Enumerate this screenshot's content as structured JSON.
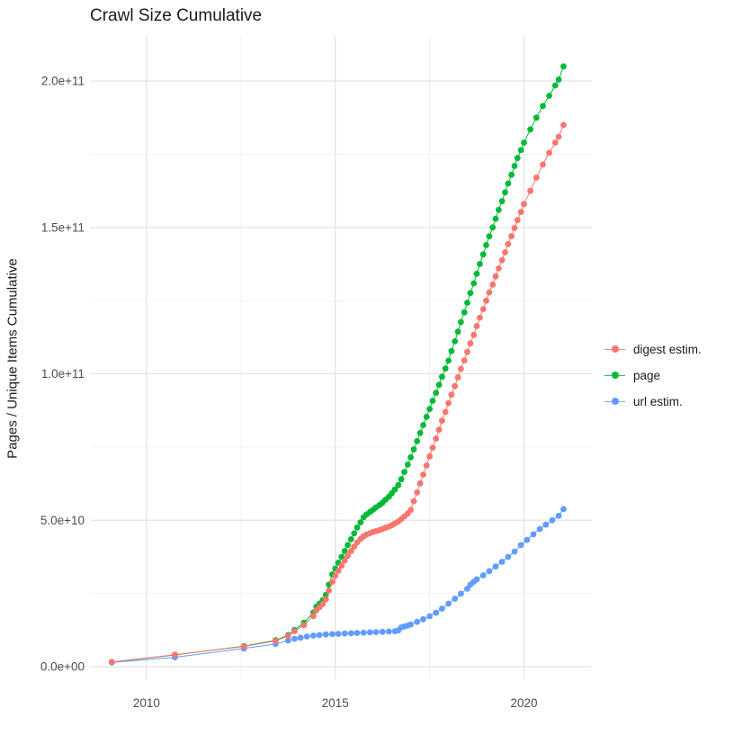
{
  "title": "Crawl Size Cumulative",
  "legend": {
    "items": [
      {
        "label": "digest estim.",
        "color": "#F8766D"
      },
      {
        "label": "page",
        "color": "#00BA38"
      },
      {
        "label": "url estim.",
        "color": "#619CFF"
      }
    ]
  },
  "chart_data": {
    "type": "line",
    "title": "Crawl Size Cumulative",
    "xlabel": "",
    "ylabel": "Pages / Unique Items Cumulative",
    "grid": {
      "on": true,
      "major_color": "#E3E3E3",
      "minor_color": "#F1F1F1",
      "background": "#FFFFFF"
    },
    "legend_position": "right",
    "axis_text_color": "#4D4D4D",
    "x_domain": [
      2008.5,
      2021.8
    ],
    "y_domain_e9": [
      -4.3,
      215.4
    ],
    "x_major_ticks": [
      {
        "value": 2010,
        "label": "2010"
      },
      {
        "value": 2015,
        "label": "2015"
      },
      {
        "value": 2020,
        "label": "2020"
      }
    ],
    "x_minor_ticks": [
      2012.5,
      2017.5
    ],
    "y_major_ticks_e9": [
      {
        "value": 0,
        "label": "0.0e+00"
      },
      {
        "value": 50,
        "label": "5.0e+10"
      },
      {
        "value": 100,
        "label": "1.0e+11"
      },
      {
        "value": 150,
        "label": "1.5e+11"
      },
      {
        "value": 200,
        "label": "2.0e+11"
      }
    ],
    "y_minor_ticks_e9": [
      25,
      75,
      125,
      175
    ],
    "values_unit": "items (value x 1e9)",
    "series": [
      {
        "name": "page",
        "color": "#00BA38",
        "points": [
          [
            2009.08,
            1.5
          ],
          [
            2010.75,
            4
          ],
          [
            2012.58,
            7
          ],
          [
            2013.42,
            9
          ],
          [
            2013.75,
            10.8
          ],
          [
            2013.92,
            12.5
          ],
          [
            2014.17,
            15
          ],
          [
            2014.42,
            18.5
          ],
          [
            2014.5,
            20.5
          ],
          [
            2014.58,
            21.5
          ],
          [
            2014.67,
            22.7
          ],
          [
            2014.75,
            24.5
          ],
          [
            2014.83,
            28
          ],
          [
            2014.92,
            31.5
          ],
          [
            2015.0,
            33.5
          ],
          [
            2015.08,
            35.5
          ],
          [
            2015.17,
            37.5
          ],
          [
            2015.25,
            39.5
          ],
          [
            2015.33,
            41.5
          ],
          [
            2015.42,
            43.5
          ],
          [
            2015.5,
            45.5
          ],
          [
            2015.58,
            47.5
          ],
          [
            2015.67,
            49.3
          ],
          [
            2015.75,
            51
          ],
          [
            2015.83,
            52
          ],
          [
            2015.92,
            52.8
          ],
          [
            2016.0,
            53.6
          ],
          [
            2016.08,
            54.4
          ],
          [
            2016.17,
            55.2
          ],
          [
            2016.25,
            56
          ],
          [
            2016.33,
            57
          ],
          [
            2016.42,
            58
          ],
          [
            2016.5,
            59.2
          ],
          [
            2016.58,
            60.5
          ],
          [
            2016.67,
            62
          ],
          [
            2016.75,
            64
          ],
          [
            2016.83,
            66.5
          ],
          [
            2016.92,
            69
          ],
          [
            2017.0,
            71.5
          ],
          [
            2017.08,
            74.2
          ],
          [
            2017.17,
            77
          ],
          [
            2017.25,
            79.8
          ],
          [
            2017.33,
            82.5
          ],
          [
            2017.42,
            85.3
          ],
          [
            2017.5,
            88
          ],
          [
            2017.58,
            90.8
          ],
          [
            2017.67,
            93.5
          ],
          [
            2017.75,
            96.3
          ],
          [
            2017.83,
            99
          ],
          [
            2017.92,
            101.8
          ],
          [
            2018.0,
            104.5
          ],
          [
            2018.08,
            107.8
          ],
          [
            2018.17,
            111.1
          ],
          [
            2018.25,
            114.4
          ],
          [
            2018.33,
            117.7
          ],
          [
            2018.42,
            121
          ],
          [
            2018.5,
            124.3
          ],
          [
            2018.58,
            127.6
          ],
          [
            2018.67,
            130.9
          ],
          [
            2018.75,
            134.2
          ],
          [
            2018.83,
            137.5
          ],
          [
            2018.92,
            140.8
          ],
          [
            2019.0,
            144
          ],
          [
            2019.08,
            147
          ],
          [
            2019.17,
            150
          ],
          [
            2019.25,
            153
          ],
          [
            2019.33,
            156
          ],
          [
            2019.42,
            159
          ],
          [
            2019.5,
            162
          ],
          [
            2019.58,
            165
          ],
          [
            2019.67,
            168
          ],
          [
            2019.75,
            171
          ],
          [
            2019.83,
            173.7
          ],
          [
            2019.92,
            176.4
          ],
          [
            2020.0,
            179
          ],
          [
            2020.17,
            183.5
          ],
          [
            2020.33,
            187.5
          ],
          [
            2020.5,
            191.5
          ],
          [
            2020.67,
            195
          ],
          [
            2020.83,
            198.5
          ],
          [
            2020.92,
            200.5
          ],
          [
            2021.05,
            205
          ]
        ]
      },
      {
        "name": "url estim.",
        "color": "#619CFF",
        "points": [
          [
            2009.08,
            1.4
          ],
          [
            2010.75,
            3.2
          ],
          [
            2012.58,
            6.2
          ],
          [
            2013.42,
            7.7
          ],
          [
            2013.75,
            8.9
          ],
          [
            2013.92,
            9.5
          ],
          [
            2014.08,
            9.9
          ],
          [
            2014.25,
            10.3
          ],
          [
            2014.42,
            10.6
          ],
          [
            2014.58,
            10.8
          ],
          [
            2014.75,
            11
          ],
          [
            2014.92,
            11.1
          ],
          [
            2015.08,
            11.2
          ],
          [
            2015.25,
            11.3
          ],
          [
            2015.42,
            11.4
          ],
          [
            2015.58,
            11.5
          ],
          [
            2015.75,
            11.6
          ],
          [
            2015.92,
            11.7
          ],
          [
            2016.08,
            11.8
          ],
          [
            2016.25,
            11.9
          ],
          [
            2016.42,
            12
          ],
          [
            2016.58,
            12.1
          ],
          [
            2016.67,
            12.4
          ],
          [
            2016.75,
            13.4
          ],
          [
            2016.83,
            13.7
          ],
          [
            2016.92,
            14
          ],
          [
            2017.0,
            14.4
          ],
          [
            2017.17,
            15.3
          ],
          [
            2017.33,
            16.2
          ],
          [
            2017.5,
            17.2
          ],
          [
            2017.67,
            18.4
          ],
          [
            2017.83,
            19.8
          ],
          [
            2018.0,
            21.5
          ],
          [
            2018.17,
            23.2
          ],
          [
            2018.33,
            24.9
          ],
          [
            2018.5,
            26.6
          ],
          [
            2018.58,
            28
          ],
          [
            2018.67,
            29
          ],
          [
            2018.75,
            29.8
          ],
          [
            2018.92,
            31.2
          ],
          [
            2019.08,
            32.6
          ],
          [
            2019.25,
            34.2
          ],
          [
            2019.42,
            35.8
          ],
          [
            2019.58,
            37.5
          ],
          [
            2019.75,
            39.3
          ],
          [
            2019.92,
            41.5
          ],
          [
            2020.08,
            43.3
          ],
          [
            2020.25,
            45.2
          ],
          [
            2020.42,
            47
          ],
          [
            2020.58,
            48.5
          ],
          [
            2020.75,
            50
          ],
          [
            2020.92,
            51.5
          ],
          [
            2021.05,
            53.8
          ]
        ]
      },
      {
        "name": "digest estim.",
        "color": "#F8766D",
        "points": [
          [
            2009.08,
            1.6
          ],
          [
            2010.75,
            4.1
          ],
          [
            2012.58,
            6.9
          ],
          [
            2013.42,
            8.8
          ],
          [
            2013.75,
            10.5
          ],
          [
            2013.92,
            12.1
          ],
          [
            2014.17,
            14.2
          ],
          [
            2014.42,
            17.3
          ],
          [
            2014.5,
            19.2
          ],
          [
            2014.58,
            20.3
          ],
          [
            2014.67,
            21.4
          ],
          [
            2014.75,
            23
          ],
          [
            2014.83,
            26
          ],
          [
            2014.92,
            29
          ],
          [
            2015.0,
            31
          ],
          [
            2015.08,
            32.8
          ],
          [
            2015.17,
            34.5
          ],
          [
            2015.25,
            36.2
          ],
          [
            2015.33,
            37.9
          ],
          [
            2015.42,
            39.5
          ],
          [
            2015.5,
            41
          ],
          [
            2015.58,
            42.4
          ],
          [
            2015.67,
            43.6
          ],
          [
            2015.75,
            44.5
          ],
          [
            2015.83,
            45.1
          ],
          [
            2015.92,
            45.6
          ],
          [
            2016.0,
            46
          ],
          [
            2016.08,
            46.3
          ],
          [
            2016.17,
            46.6
          ],
          [
            2016.25,
            47
          ],
          [
            2016.33,
            47.4
          ],
          [
            2016.42,
            47.8
          ],
          [
            2016.5,
            48.3
          ],
          [
            2016.58,
            48.9
          ],
          [
            2016.67,
            49.6
          ],
          [
            2016.75,
            50.4
          ],
          [
            2016.83,
            51.3
          ],
          [
            2016.92,
            52.3
          ],
          [
            2017.0,
            53.5
          ],
          [
            2017.08,
            56.5
          ],
          [
            2017.17,
            59.5
          ],
          [
            2017.25,
            62.6
          ],
          [
            2017.33,
            65.6
          ],
          [
            2017.42,
            68.7
          ],
          [
            2017.5,
            71.8
          ],
          [
            2017.58,
            74.8
          ],
          [
            2017.67,
            77.9
          ],
          [
            2017.75,
            80.9
          ],
          [
            2017.83,
            84
          ],
          [
            2017.92,
            87
          ],
          [
            2018.0,
            90
          ],
          [
            2018.08,
            92.9
          ],
          [
            2018.17,
            95.8
          ],
          [
            2018.25,
            98.8
          ],
          [
            2018.33,
            101.7
          ],
          [
            2018.42,
            104.6
          ],
          [
            2018.5,
            107.5
          ],
          [
            2018.58,
            110.4
          ],
          [
            2018.67,
            113.3
          ],
          [
            2018.75,
            116.3
          ],
          [
            2018.83,
            119.2
          ],
          [
            2018.92,
            122.1
          ],
          [
            2019.0,
            125
          ],
          [
            2019.08,
            127.8
          ],
          [
            2019.17,
            130.5
          ],
          [
            2019.25,
            133.3
          ],
          [
            2019.33,
            136
          ],
          [
            2019.42,
            138.8
          ],
          [
            2019.5,
            141.5
          ],
          [
            2019.58,
            144.3
          ],
          [
            2019.67,
            147
          ],
          [
            2019.75,
            149.8
          ],
          [
            2019.83,
            152.5
          ],
          [
            2019.92,
            155.3
          ],
          [
            2020.0,
            158
          ],
          [
            2020.17,
            162.5
          ],
          [
            2020.33,
            167
          ],
          [
            2020.5,
            171.5
          ],
          [
            2020.67,
            175.5
          ],
          [
            2020.83,
            179
          ],
          [
            2020.92,
            181
          ],
          [
            2021.05,
            185
          ]
        ]
      }
    ]
  }
}
